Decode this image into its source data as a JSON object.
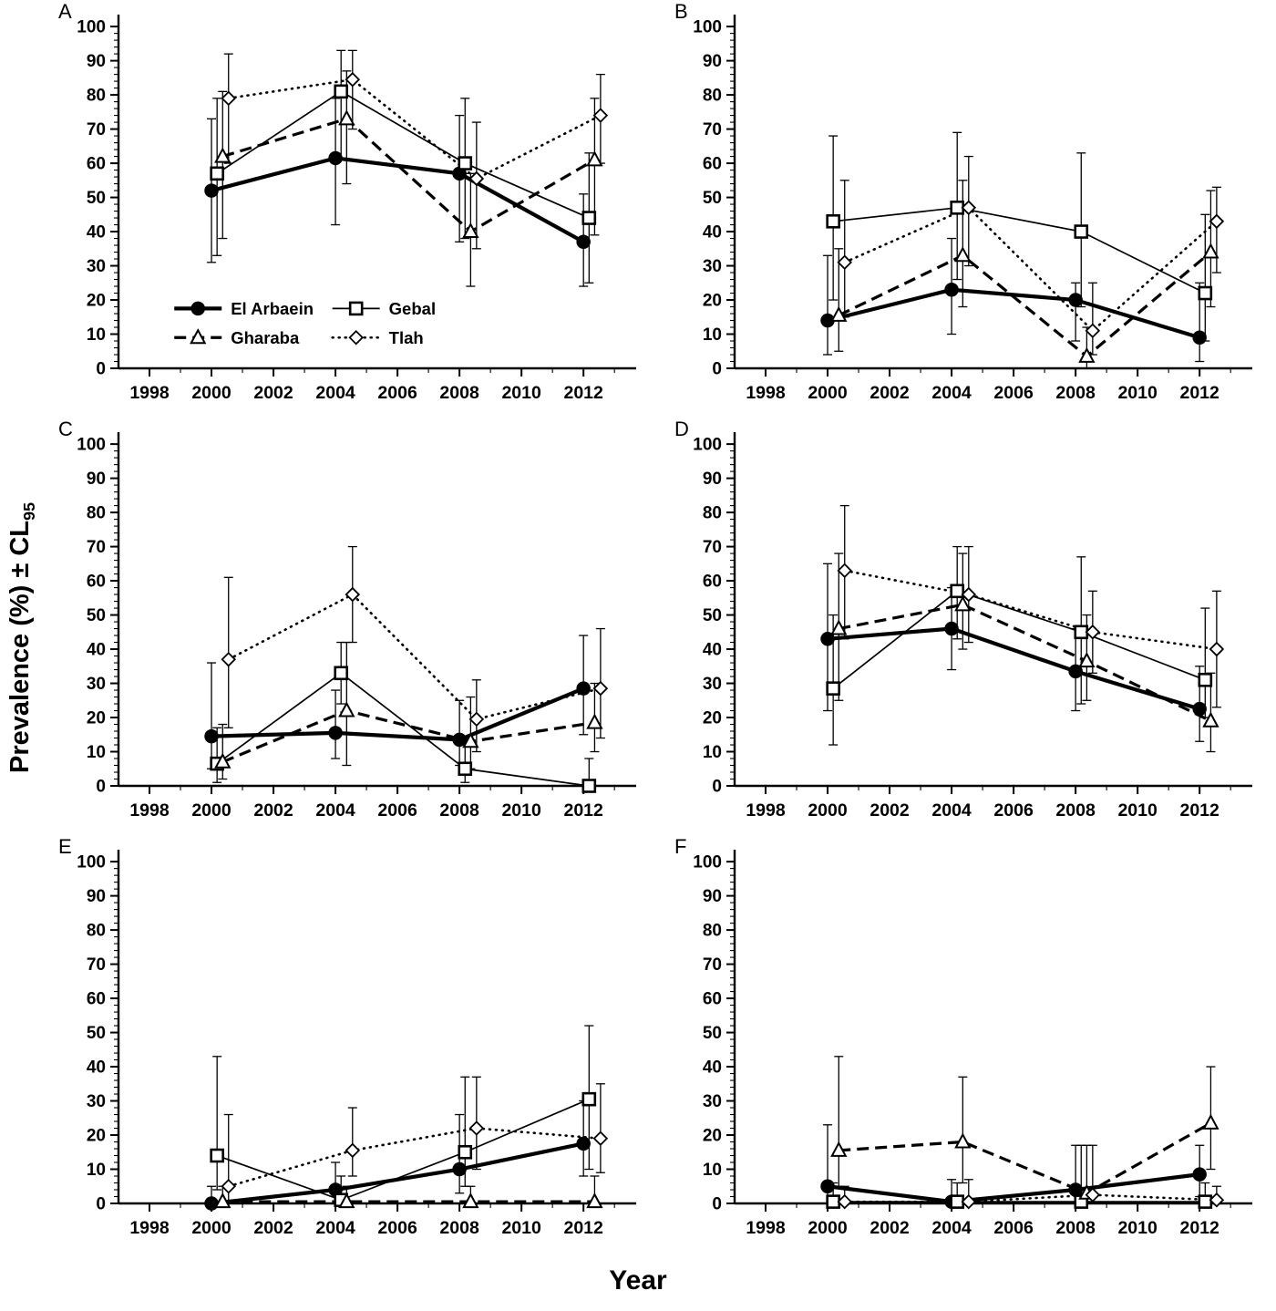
{
  "figure": {
    "y_axis_label": "Prevalence (%) ± CL",
    "y_axis_label_sub": "95",
    "x_axis_label": "Year",
    "colors": {
      "ink": "#000000",
      "background": "#ffffff"
    }
  },
  "axes_shared": {
    "xlim": [
      1997.0,
      2013.7
    ],
    "ylim": [
      0,
      100
    ],
    "x_ticks": [
      1998,
      2000,
      2002,
      2004,
      2006,
      2008,
      2010,
      2012
    ],
    "y_ticks": [
      0,
      10,
      20,
      30,
      40,
      50,
      60,
      70,
      80,
      90,
      100
    ],
    "x_minor_step": 1,
    "y_minor_step": 2,
    "grid": false
  },
  "chart_data": [
    {
      "type": "line",
      "panel": "A",
      "x": [
        2000,
        2004,
        2008,
        2012
      ],
      "legend": {
        "show": true,
        "position": "lower-left",
        "entries": [
          "El Arbaein",
          "Gebal",
          "Gharaba",
          "Tlah"
        ]
      },
      "series": [
        {
          "name": "El Arbaein",
          "values": [
            52,
            61.5,
            57,
            37
          ],
          "err_low": [
            31,
            42,
            37,
            24
          ],
          "err_high": [
            73,
            79,
            74,
            51
          ]
        },
        {
          "name": "Gebal",
          "values": [
            57,
            81,
            60,
            44
          ],
          "err_low": [
            33,
            61,
            38,
            25
          ],
          "err_high": [
            79,
            93,
            79,
            63
          ]
        },
        {
          "name": "Gharaba",
          "values": [
            62,
            73,
            40,
            61
          ],
          "err_low": [
            38,
            54,
            24,
            39
          ],
          "err_high": [
            81,
            87,
            57,
            79
          ]
        },
        {
          "name": "Tlah",
          "values": [
            79,
            84.5,
            55.5,
            74
          ],
          "err_low": [
            60,
            70,
            35,
            60
          ],
          "err_high": [
            92,
            93,
            72,
            86
          ]
        }
      ]
    },
    {
      "type": "line",
      "panel": "B",
      "x": [
        2000,
        2004,
        2008,
        2012
      ],
      "legend": {
        "show": false
      },
      "series": [
        {
          "name": "El Arbaein",
          "values": [
            14,
            23,
            20,
            9
          ],
          "err_low": [
            4,
            10,
            8,
            2
          ],
          "err_high": [
            33,
            38,
            25,
            25
          ]
        },
        {
          "name": "Gebal",
          "values": [
            43,
            47,
            40,
            22
          ],
          "err_low": [
            20,
            26,
            18,
            8
          ],
          "err_high": [
            68,
            69,
            63,
            45
          ]
        },
        {
          "name": "Gharaba",
          "values": [
            15.5,
            33,
            3.5,
            34
          ],
          "err_low": [
            5,
            18,
            0,
            18
          ],
          "err_high": [
            35,
            55,
            12,
            52
          ]
        },
        {
          "name": "Tlah",
          "values": [
            31,
            47,
            11,
            43
          ],
          "err_low": [
            15,
            30,
            4,
            28
          ],
          "err_high": [
            55,
            62,
            25,
            53
          ]
        }
      ]
    },
    {
      "type": "line",
      "panel": "C",
      "x": [
        2000,
        2004,
        2008,
        2012
      ],
      "legend": {
        "show": false
      },
      "series": [
        {
          "name": "El Arbaein",
          "values": [
            14.5,
            15.5,
            13.5,
            28.5
          ],
          "err_low": [
            5,
            8,
            6,
            15
          ],
          "err_high": [
            36,
            28,
            25,
            44
          ]
        },
        {
          "name": "Gebal",
          "values": [
            6.5,
            33,
            5,
            0
          ],
          "err_low": [
            1,
            24,
            1,
            0
          ],
          "err_high": [
            17,
            42,
            13,
            8
          ]
        },
        {
          "name": "Gharaba",
          "values": [
            7,
            22,
            13,
            18.5
          ],
          "err_low": [
            2,
            6,
            5,
            10
          ],
          "err_high": [
            18,
            42,
            26,
            30
          ]
        },
        {
          "name": "Tlah",
          "values": [
            37,
            56,
            19.5,
            28.5
          ],
          "err_low": [
            17,
            42,
            10,
            14
          ],
          "err_high": [
            61,
            70,
            31,
            46
          ]
        }
      ]
    },
    {
      "type": "line",
      "panel": "D",
      "x": [
        2000,
        2004,
        2008,
        2012
      ],
      "legend": {
        "show": false
      },
      "series": [
        {
          "name": "El Arbaein",
          "values": [
            43,
            46,
            33.5,
            22.5
          ],
          "err_low": [
            22,
            34,
            22,
            13
          ],
          "err_high": [
            65,
            58,
            46,
            35
          ]
        },
        {
          "name": "Gebal",
          "values": [
            28.5,
            57,
            45,
            31
          ],
          "err_low": [
            12,
            43,
            24,
            20
          ],
          "err_high": [
            50,
            70,
            67,
            52
          ]
        },
        {
          "name": "Gharaba",
          "values": [
            46,
            53,
            36.5,
            19
          ],
          "err_low": [
            25,
            40,
            25,
            10
          ],
          "err_high": [
            68,
            68,
            50,
            33
          ]
        },
        {
          "name": "Tlah",
          "values": [
            63,
            56,
            45,
            40
          ],
          "err_low": [
            43,
            42,
            33,
            23
          ],
          "err_high": [
            82,
            70,
            57,
            57
          ]
        }
      ]
    },
    {
      "type": "line",
      "panel": "E",
      "x": [
        2000,
        2004,
        2008,
        2012
      ],
      "legend": {
        "show": false
      },
      "series": [
        {
          "name": "El Arbaein",
          "values": [
            0,
            4,
            10,
            17.5
          ],
          "err_low": [
            0,
            0,
            3,
            8
          ],
          "err_high": [
            5,
            12,
            26,
            30
          ]
        },
        {
          "name": "Gebal",
          "values": [
            14,
            1,
            15,
            30.5
          ],
          "err_low": [
            4,
            0,
            5,
            10
          ],
          "err_high": [
            43,
            8,
            37,
            52
          ]
        },
        {
          "name": "Gharaba",
          "values": [
            0.5,
            0.5,
            0.5,
            0.5
          ],
          "err_low": [
            0,
            0,
            0,
            0
          ],
          "err_high": [
            5,
            5,
            5,
            8
          ]
        },
        {
          "name": "Tlah",
          "values": [
            5,
            15.5,
            22,
            19
          ],
          "err_low": [
            0,
            8,
            10,
            9
          ],
          "err_high": [
            26,
            28,
            37,
            35
          ]
        }
      ]
    },
    {
      "type": "line",
      "panel": "F",
      "x": [
        2000,
        2004,
        2008,
        2012
      ],
      "legend": {
        "show": false
      },
      "series": [
        {
          "name": "El Arbaein",
          "values": [
            5,
            0.5,
            4,
            8.5
          ],
          "err_low": [
            0,
            0,
            0,
            2
          ],
          "err_high": [
            23,
            7,
            17,
            17
          ]
        },
        {
          "name": "Gebal",
          "values": [
            0.5,
            0.5,
            0.5,
            0.5
          ],
          "err_low": [
            0,
            0,
            0,
            0
          ],
          "err_high": [
            6,
            6,
            17,
            6
          ]
        },
        {
          "name": "Gharaba",
          "values": [
            15.5,
            18,
            3,
            23.5
          ],
          "err_low": [
            5,
            6,
            0,
            10
          ],
          "err_high": [
            43,
            37,
            17,
            40
          ]
        },
        {
          "name": "Tlah",
          "values": [
            0.5,
            0.5,
            2.5,
            1
          ],
          "err_low": [
            0,
            0,
            0,
            0
          ],
          "err_high": [
            5,
            7,
            17,
            5
          ]
        }
      ]
    }
  ]
}
